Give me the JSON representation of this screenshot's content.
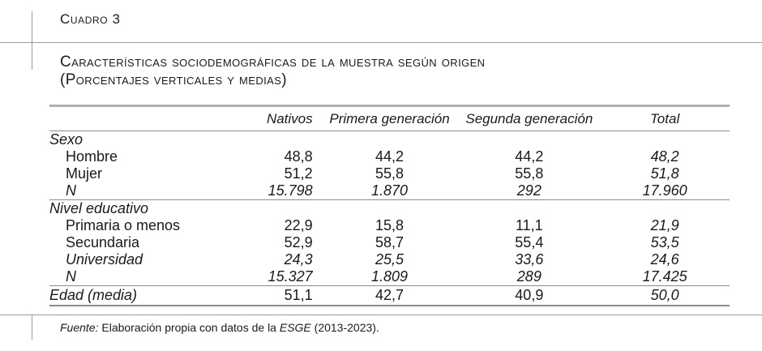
{
  "cuadro": {
    "label": "Cuadro 3"
  },
  "title": {
    "line1": "Características sociodemográficas de la muestra según origen",
    "line2": "(Porcentajes verticales y medias)"
  },
  "table": {
    "headers": [
      "",
      "Nativos",
      "Primera generación",
      "Segunda generación",
      "Total"
    ],
    "sections": [
      {
        "label": "Sexo",
        "rows": [
          {
            "label": "Hombre",
            "values": [
              "48,8",
              "44,2",
              "44,2",
              "48,2"
            ],
            "italic": false
          },
          {
            "label": "Mujer",
            "values": [
              "51,2",
              "55,8",
              "55,8",
              "51,8"
            ],
            "italic": false
          },
          {
            "label": "N",
            "values": [
              "15.798",
              "1.870",
              "292",
              "17.960"
            ],
            "italic": true
          }
        ]
      },
      {
        "label": "Nivel educativo",
        "rows": [
          {
            "label": "Primaria o menos",
            "values": [
              "22,9",
              "15,8",
              "11,1",
              "21,9"
            ],
            "italic": false
          },
          {
            "label": "Secundaria",
            "values": [
              "52,9",
              "58,7",
              "55,4",
              "53,5"
            ],
            "italic": false
          },
          {
            "label": "Universidad",
            "values": [
              "24,3",
              "25,5",
              "33,6",
              "24,6"
            ],
            "italic": true
          },
          {
            "label": "N",
            "values": [
              "15.327",
              "1.809",
              "289",
              "17.425"
            ],
            "italic": true
          }
        ]
      }
    ],
    "final_row": {
      "label": "Edad (media)",
      "values": [
        "51,1",
        "42,7",
        "40,9",
        "50,0"
      ]
    }
  },
  "footnote": {
    "source_label": "Fuente:",
    "text_before": " Elaboración propia con datos de la ",
    "survey": "ESGE",
    "text_after": " (2013-2023)."
  }
}
